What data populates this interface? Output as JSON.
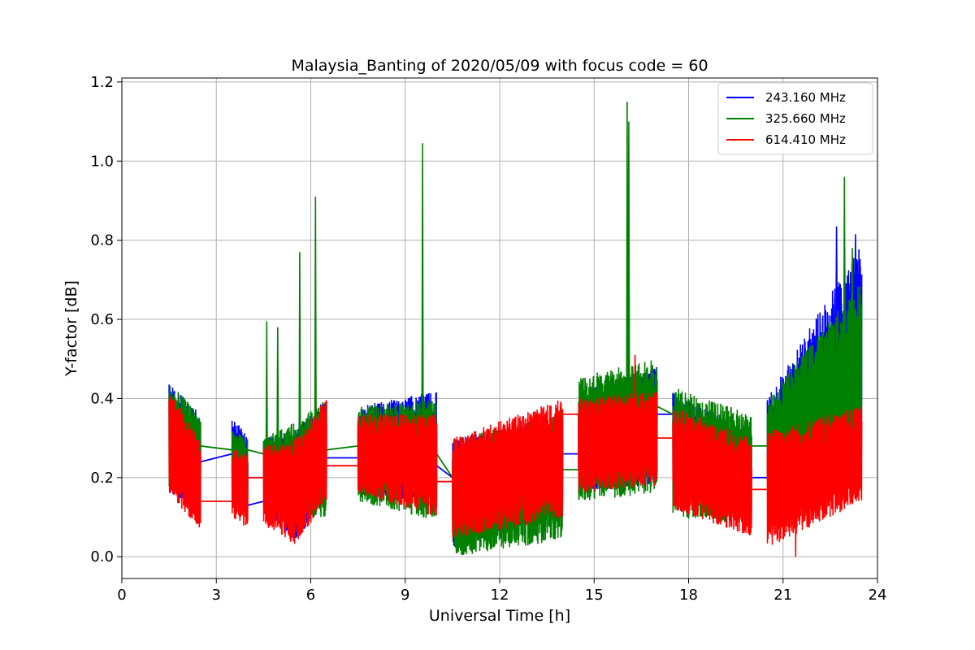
{
  "chart_data": {
    "type": "line",
    "title": "Malaysia_Banting of 2020/05/09 with focus code = 60",
    "xlabel": "Universal Time [h]",
    "ylabel": "Y-factor [dB]",
    "xlim": [
      0,
      24
    ],
    "ylim": [
      -0.055,
      1.21
    ],
    "xticks": [
      0,
      3,
      6,
      9,
      12,
      15,
      18,
      21,
      24
    ],
    "yticks": [
      0.0,
      0.2,
      0.4,
      0.6,
      0.8,
      1.0,
      1.2
    ],
    "xtick_labels": [
      "0",
      "3",
      "6",
      "9",
      "12",
      "15",
      "18",
      "21",
      "24"
    ],
    "ytick_labels": [
      "0.0",
      "0.2",
      "0.4",
      "0.6",
      "0.8",
      "1.0",
      "1.2"
    ],
    "grid": true,
    "legend_position": "top-right",
    "segments": [
      [
        1.5,
        2.5
      ],
      [
        3.5,
        4.0
      ],
      [
        4.5,
        6.5
      ],
      [
        7.5,
        10.0
      ],
      [
        10.5,
        14.0
      ],
      [
        14.5,
        17.0
      ],
      [
        17.5,
        20.0
      ],
      [
        20.5,
        23.5
      ]
    ],
    "series": [
      {
        "name": "243.160 MHz",
        "color": "#0000ff",
        "levels": [
          {
            "x": 1.5,
            "low": 0.16,
            "high": 0.44,
            "mean": 0.24
          },
          {
            "x": 2.5,
            "low": 0.12,
            "high": 0.36,
            "mean": 0.24
          },
          {
            "x": 3.5,
            "low": 0.14,
            "high": 0.36,
            "mean": 0.26
          },
          {
            "x": 4.0,
            "low": 0.09,
            "high": 0.3,
            "mean": 0.13
          },
          {
            "x": 4.5,
            "low": 0.12,
            "high": 0.3,
            "mean": 0.14
          },
          {
            "x": 5.5,
            "low": 0.04,
            "high": 0.32,
            "mean": 0.16
          },
          {
            "x": 6.5,
            "low": 0.14,
            "high": 0.4,
            "mean": 0.25
          },
          {
            "x": 7.5,
            "low": 0.16,
            "high": 0.38,
            "mean": 0.25
          },
          {
            "x": 10.0,
            "low": 0.12,
            "high": 0.42,
            "mean": 0.23
          },
          {
            "x": 10.5,
            "low": 0.02,
            "high": 0.3,
            "mean": 0.2
          },
          {
            "x": 14.0,
            "low": 0.12,
            "high": 0.36,
            "mean": 0.26
          },
          {
            "x": 14.5,
            "low": 0.16,
            "high": 0.42,
            "mean": 0.26
          },
          {
            "x": 17.0,
            "low": 0.18,
            "high": 0.48,
            "mean": 0.36
          },
          {
            "x": 17.5,
            "low": 0.16,
            "high": 0.42,
            "mean": 0.36
          },
          {
            "x": 20.0,
            "low": 0.08,
            "high": 0.32,
            "mean": 0.2
          },
          {
            "x": 20.5,
            "low": 0.14,
            "high": 0.4,
            "mean": 0.2
          },
          {
            "x": 23.5,
            "low": 0.18,
            "high": 0.8,
            "mean": 0.3
          }
        ],
        "spikes": [
          {
            "x": 22.7,
            "y": 0.835
          },
          {
            "x": 23.3,
            "y": 0.815
          },
          {
            "x": 22.1,
            "y": 0.6
          }
        ]
      },
      {
        "name": "325.660 MHz",
        "color": "#008000",
        "levels": [
          {
            "x": 1.5,
            "low": 0.17,
            "high": 0.44,
            "mean": 0.29
          },
          {
            "x": 2.5,
            "low": 0.13,
            "high": 0.36,
            "mean": 0.28
          },
          {
            "x": 3.5,
            "low": 0.14,
            "high": 0.32,
            "mean": 0.27
          },
          {
            "x": 4.0,
            "low": 0.1,
            "high": 0.3,
            "mean": 0.27
          },
          {
            "x": 4.5,
            "low": 0.12,
            "high": 0.3,
            "mean": 0.26
          },
          {
            "x": 5.5,
            "low": 0.1,
            "high": 0.34,
            "mean": 0.22
          },
          {
            "x": 6.5,
            "low": 0.1,
            "high": 0.4,
            "mean": 0.27
          },
          {
            "x": 7.5,
            "low": 0.14,
            "high": 0.38,
            "mean": 0.28
          },
          {
            "x": 10.0,
            "low": 0.09,
            "high": 0.4,
            "mean": 0.26
          },
          {
            "x": 10.5,
            "low": 0.0,
            "high": 0.3,
            "mean": 0.2
          },
          {
            "x": 14.0,
            "low": 0.04,
            "high": 0.36,
            "mean": 0.22
          },
          {
            "x": 14.5,
            "low": 0.14,
            "high": 0.46,
            "mean": 0.22
          },
          {
            "x": 17.0,
            "low": 0.16,
            "high": 0.5,
            "mean": 0.38
          },
          {
            "x": 17.5,
            "low": 0.1,
            "high": 0.43,
            "mean": 0.36
          },
          {
            "x": 20.0,
            "low": 0.08,
            "high": 0.36,
            "mean": 0.28
          },
          {
            "x": 20.5,
            "low": 0.16,
            "high": 0.4,
            "mean": 0.28
          },
          {
            "x": 23.5,
            "low": 0.18,
            "high": 0.7,
            "mean": 0.3
          }
        ],
        "spikes": [
          {
            "x": 4.6,
            "y": 0.595
          },
          {
            "x": 4.95,
            "y": 0.58
          },
          {
            "x": 5.65,
            "y": 0.77
          },
          {
            "x": 6.15,
            "y": 0.91
          },
          {
            "x": 9.55,
            "y": 1.045
          },
          {
            "x": 16.05,
            "y": 1.15
          },
          {
            "x": 16.1,
            "y": 1.1
          },
          {
            "x": 22.95,
            "y": 0.96
          },
          {
            "x": 23.2,
            "y": 0.78
          }
        ]
      },
      {
        "name": "614.410 MHz",
        "color": "#ff0000",
        "levels": [
          {
            "x": 1.5,
            "low": 0.16,
            "high": 0.42,
            "mean": 0.14
          },
          {
            "x": 2.5,
            "low": 0.06,
            "high": 0.3,
            "mean": 0.14
          },
          {
            "x": 3.5,
            "low": 0.1,
            "high": 0.28,
            "mean": 0.14
          },
          {
            "x": 4.0,
            "low": 0.07,
            "high": 0.26,
            "mean": 0.2
          },
          {
            "x": 4.5,
            "low": 0.08,
            "high": 0.28,
            "mean": 0.2
          },
          {
            "x": 5.5,
            "low": 0.03,
            "high": 0.3,
            "mean": 0.18
          },
          {
            "x": 6.5,
            "low": 0.14,
            "high": 0.4,
            "mean": 0.23
          },
          {
            "x": 7.5,
            "low": 0.16,
            "high": 0.36,
            "mean": 0.23
          },
          {
            "x": 10.0,
            "low": 0.1,
            "high": 0.36,
            "mean": 0.19
          },
          {
            "x": 10.5,
            "low": 0.04,
            "high": 0.3,
            "mean": 0.19
          },
          {
            "x": 14.0,
            "low": 0.1,
            "high": 0.4,
            "mean": 0.36
          },
          {
            "x": 14.5,
            "low": 0.16,
            "high": 0.4,
            "mean": 0.36
          },
          {
            "x": 17.0,
            "low": 0.18,
            "high": 0.42,
            "mean": 0.3
          },
          {
            "x": 17.5,
            "low": 0.12,
            "high": 0.38,
            "mean": 0.3
          },
          {
            "x": 20.0,
            "low": 0.05,
            "high": 0.3,
            "mean": 0.17
          },
          {
            "x": 20.5,
            "low": 0.02,
            "high": 0.32,
            "mean": 0.17
          },
          {
            "x": 23.5,
            "low": 0.14,
            "high": 0.38,
            "mean": 0.3
          }
        ],
        "spikes": [
          {
            "x": 16.3,
            "y": 0.51
          },
          {
            "x": 21.4,
            "y": 0.0
          }
        ]
      }
    ]
  }
}
